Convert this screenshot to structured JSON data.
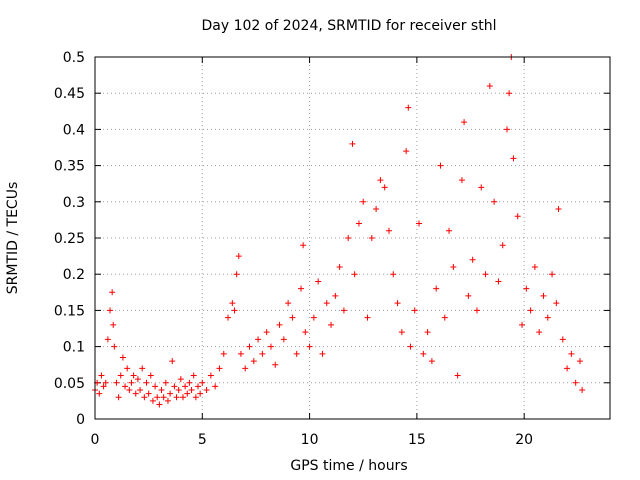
{
  "chart_data": {
    "type": "scatter",
    "title": "Day 102 of 2024, SRMTID for receiver sthl",
    "xlabel": "GPS time / hours",
    "ylabel": "SRMTID / TECUs",
    "xlim": [
      0,
      24
    ],
    "ylim": [
      0,
      0.5
    ],
    "x_ticks": [
      0,
      5,
      10,
      15,
      20
    ],
    "y_ticks": [
      0,
      0.05,
      0.1,
      0.15,
      0.2,
      0.25,
      0.3,
      0.35,
      0.4,
      0.45,
      0.5
    ],
    "grid": true,
    "marker": "+",
    "color": "#ff0000",
    "series": [
      {
        "points": [
          [
            0.0,
            0.04
          ],
          [
            0.1,
            0.05
          ],
          [
            0.2,
            0.035
          ],
          [
            0.3,
            0.06
          ],
          [
            0.4,
            0.045
          ],
          [
            0.5,
            0.05
          ],
          [
            0.6,
            0.11
          ],
          [
            0.7,
            0.15
          ],
          [
            0.8,
            0.175
          ],
          [
            0.85,
            0.13
          ],
          [
            0.9,
            0.1
          ],
          [
            1.0,
            0.05
          ],
          [
            1.1,
            0.03
          ],
          [
            1.2,
            0.06
          ],
          [
            1.3,
            0.085
          ],
          [
            1.4,
            0.045
          ],
          [
            1.5,
            0.07
          ],
          [
            1.6,
            0.04
          ],
          [
            1.7,
            0.05
          ],
          [
            1.8,
            0.06
          ],
          [
            1.9,
            0.035
          ],
          [
            2.0,
            0.055
          ],
          [
            2.1,
            0.04
          ],
          [
            2.2,
            0.07
          ],
          [
            2.3,
            0.03
          ],
          [
            2.4,
            0.05
          ],
          [
            2.5,
            0.035
          ],
          [
            2.6,
            0.06
          ],
          [
            2.7,
            0.025
          ],
          [
            2.8,
            0.045
          ],
          [
            2.9,
            0.03
          ],
          [
            3.0,
            0.02
          ],
          [
            3.1,
            0.04
          ],
          [
            3.2,
            0.03
          ],
          [
            3.3,
            0.05
          ],
          [
            3.4,
            0.025
          ],
          [
            3.5,
            0.035
          ],
          [
            3.6,
            0.08
          ],
          [
            3.7,
            0.045
          ],
          [
            3.8,
            0.03
          ],
          [
            3.9,
            0.04
          ],
          [
            4.0,
            0.055
          ],
          [
            4.1,
            0.03
          ],
          [
            4.2,
            0.045
          ],
          [
            4.3,
            0.035
          ],
          [
            4.4,
            0.05
          ],
          [
            4.5,
            0.04
          ],
          [
            4.6,
            0.06
          ],
          [
            4.7,
            0.03
          ],
          [
            4.8,
            0.045
          ],
          [
            4.9,
            0.035
          ],
          [
            5.0,
            0.05
          ],
          [
            5.2,
            0.04
          ],
          [
            5.4,
            0.06
          ],
          [
            5.6,
            0.045
          ],
          [
            5.8,
            0.07
          ],
          [
            6.0,
            0.09
          ],
          [
            6.2,
            0.14
          ],
          [
            6.4,
            0.16
          ],
          [
            6.5,
            0.15
          ],
          [
            6.6,
            0.2
          ],
          [
            6.7,
            0.225
          ],
          [
            6.8,
            0.09
          ],
          [
            7.0,
            0.07
          ],
          [
            7.2,
            0.1
          ],
          [
            7.4,
            0.08
          ],
          [
            7.6,
            0.11
          ],
          [
            7.8,
            0.09
          ],
          [
            8.0,
            0.12
          ],
          [
            8.2,
            0.1
          ],
          [
            8.4,
            0.075
          ],
          [
            8.6,
            0.13
          ],
          [
            8.8,
            0.11
          ],
          [
            9.0,
            0.16
          ],
          [
            9.2,
            0.14
          ],
          [
            9.4,
            0.09
          ],
          [
            9.6,
            0.18
          ],
          [
            9.7,
            0.24
          ],
          [
            9.8,
            0.12
          ],
          [
            10.0,
            0.1
          ],
          [
            10.2,
            0.14
          ],
          [
            10.4,
            0.19
          ],
          [
            10.6,
            0.09
          ],
          [
            10.8,
            0.16
          ],
          [
            11.0,
            0.13
          ],
          [
            11.2,
            0.17
          ],
          [
            11.4,
            0.21
          ],
          [
            11.6,
            0.15
          ],
          [
            11.8,
            0.25
          ],
          [
            12.0,
            0.38
          ],
          [
            12.1,
            0.2
          ],
          [
            12.3,
            0.27
          ],
          [
            12.5,
            0.3
          ],
          [
            12.7,
            0.14
          ],
          [
            12.9,
            0.25
          ],
          [
            13.1,
            0.29
          ],
          [
            13.3,
            0.33
          ],
          [
            13.5,
            0.32
          ],
          [
            13.7,
            0.26
          ],
          [
            13.9,
            0.2
          ],
          [
            14.1,
            0.16
          ],
          [
            14.3,
            0.12
          ],
          [
            14.5,
            0.37
          ],
          [
            14.6,
            0.43
          ],
          [
            14.7,
            0.1
          ],
          [
            14.9,
            0.15
          ],
          [
            15.1,
            0.27
          ],
          [
            15.3,
            0.09
          ],
          [
            15.5,
            0.12
          ],
          [
            15.7,
            0.08
          ],
          [
            15.9,
            0.18
          ],
          [
            16.1,
            0.35
          ],
          [
            16.3,
            0.14
          ],
          [
            16.5,
            0.26
          ],
          [
            16.7,
            0.21
          ],
          [
            16.9,
            0.06
          ],
          [
            17.1,
            0.33
          ],
          [
            17.2,
            0.41
          ],
          [
            17.4,
            0.17
          ],
          [
            17.6,
            0.22
          ],
          [
            17.8,
            0.15
          ],
          [
            18.0,
            0.32
          ],
          [
            18.2,
            0.2
          ],
          [
            18.4,
            0.46
          ],
          [
            18.6,
            0.3
          ],
          [
            18.8,
            0.19
          ],
          [
            19.0,
            0.24
          ],
          [
            19.2,
            0.4
          ],
          [
            19.3,
            0.45
          ],
          [
            19.4,
            0.5
          ],
          [
            19.5,
            0.36
          ],
          [
            19.7,
            0.28
          ],
          [
            19.9,
            0.13
          ],
          [
            20.1,
            0.18
          ],
          [
            20.3,
            0.15
          ],
          [
            20.5,
            0.21
          ],
          [
            20.7,
            0.12
          ],
          [
            20.9,
            0.17
          ],
          [
            21.1,
            0.14
          ],
          [
            21.3,
            0.2
          ],
          [
            21.5,
            0.16
          ],
          [
            21.6,
            0.29
          ],
          [
            21.8,
            0.11
          ],
          [
            22.0,
            0.07
          ],
          [
            22.2,
            0.09
          ],
          [
            22.4,
            0.05
          ],
          [
            22.6,
            0.08
          ],
          [
            22.7,
            0.04
          ]
        ]
      }
    ]
  }
}
